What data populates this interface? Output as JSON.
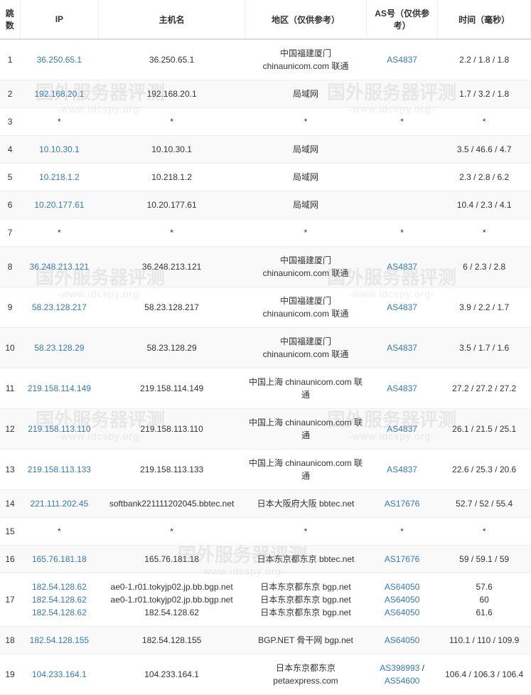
{
  "headers": {
    "hop": "跳数",
    "ip": "IP",
    "host": "主机名",
    "location": "地区（仅供参考）",
    "as": "AS号（仅供参考）",
    "time": "时间（毫秒）"
  },
  "rows": [
    {
      "hop": "1",
      "ip": "36.250.65.1",
      "host": "36.250.65.1",
      "location": "中国福建厦门 chinaunicom.com 联通",
      "as": "AS4837",
      "time": "2.2 / 1.8 / 1.8"
    },
    {
      "hop": "2",
      "ip": "192.168.20.1",
      "host": "192.168.20.1",
      "location": "局域网",
      "as": "",
      "time": "1.7 / 3.2 / 1.8"
    },
    {
      "hop": "3",
      "ip": "*",
      "host": "*",
      "location": "*",
      "as": "*",
      "time": "*"
    },
    {
      "hop": "4",
      "ip": "10.10.30.1",
      "host": "10.10.30.1",
      "location": "局域网",
      "as": "",
      "time": "3.5 / 46.6 / 4.7"
    },
    {
      "hop": "5",
      "ip": "10.218.1.2",
      "host": "10.218.1.2",
      "location": "局域网",
      "as": "",
      "time": "2.3 / 2.8 / 6.2"
    },
    {
      "hop": "6",
      "ip": "10.20.177.61",
      "host": "10.20.177.61",
      "location": "局域网",
      "as": "",
      "time": "10.4 / 2.3 / 4.1"
    },
    {
      "hop": "7",
      "ip": "*",
      "host": "*",
      "location": "*",
      "as": "*",
      "time": "*"
    },
    {
      "hop": "8",
      "ip": "36.248.213.121",
      "host": "36.248.213.121",
      "location": "中国福建厦门 chinaunicom.com 联通",
      "as": "AS4837",
      "time": "6 / 2.3 / 2.8"
    },
    {
      "hop": "9",
      "ip": "58.23.128.217",
      "host": "58.23.128.217",
      "location": "中国福建厦门 chinaunicom.com 联通",
      "as": "AS4837",
      "time": "3.9 / 2.2 / 1.7"
    },
    {
      "hop": "10",
      "ip": "58.23.128.29",
      "host": "58.23.128.29",
      "location": "中国福建厦门 chinaunicom.com 联通",
      "as": "AS4837",
      "time": "3.5 / 1.7 / 1.6"
    },
    {
      "hop": "11",
      "ip": "219.158.114.149",
      "host": "219.158.114.149",
      "location": "中国上海 chinaunicom.com 联通",
      "as": "AS4837",
      "time": "27.2 / 27.2 / 27.2"
    },
    {
      "hop": "12",
      "ip": "219.158.113.110",
      "host": "219.158.113.110",
      "location": "中国上海 chinaunicom.com 联通",
      "as": "AS4837",
      "time": "26.1 / 21.5 / 25.1"
    },
    {
      "hop": "13",
      "ip": "219.158.113.133",
      "host": "219.158.113.133",
      "location": "中国上海 chinaunicom.com 联通",
      "as": "AS4837",
      "time": "22.6 / 25.3 / 20.6"
    },
    {
      "hop": "14",
      "ip": "221.111.202.45",
      "host": "softbank221111202045.bbtec.net",
      "location": "日本大阪府大阪 bbtec.net",
      "as": "AS17676",
      "time": "52.7 / 52 / 55.4"
    },
    {
      "hop": "15",
      "ip": "*",
      "host": "*",
      "location": "*",
      "as": "*",
      "time": "*"
    },
    {
      "hop": "16",
      "ip": "165.76.181.18",
      "host": "165.76.181.18",
      "location": "日本东京都东京 bbtec.net",
      "as": "AS17676",
      "time": "59 / 59.1 / 59"
    },
    {
      "hop": "17",
      "ip_multi": [
        "182.54.128.62",
        "182.54.128.62",
        "182.54.128.62"
      ],
      "host_multi": [
        "ae0-1.r01.tokyjp02.jp.bb.bgp.net",
        "ae0-1.r01.tokyjp02.jp.bb.bgp.net",
        "182.54.128.62"
      ],
      "location_multi": [
        "日本东京都东京 bgp.net",
        "日本东京都东京 bgp.net",
        "日本东京都东京 bgp.net"
      ],
      "as_multi": [
        "AS64050",
        "AS64050",
        "AS64050"
      ],
      "time_multi": [
        "57.6",
        "60",
        "61.6"
      ]
    },
    {
      "hop": "18",
      "ip": "182.54.128.155",
      "host": "182.54.128.155",
      "location": "BGP.NET 骨干网 bgp.net",
      "as": "AS64050",
      "time": "110.1 / 110 / 109.9"
    },
    {
      "hop": "19",
      "ip": "104.233.164.1",
      "host": "104.233.164.1",
      "location": "日本东京都东京 petaexpress.com",
      "as_multi_link": [
        "AS398993",
        "AS54600"
      ],
      "as_sep": " / ",
      "time": "106.4 / 106.3 / 106.4"
    }
  ],
  "watermark": {
    "main": "国外服务器评测",
    "sub": "-www.idcspy.org-"
  },
  "colors": {
    "link": "#337ab7",
    "border": "#eeeeee",
    "header_border": "#dddddd",
    "even_row": "#f9f9f9",
    "odd_row": "#ffffff",
    "text": "#333333"
  }
}
